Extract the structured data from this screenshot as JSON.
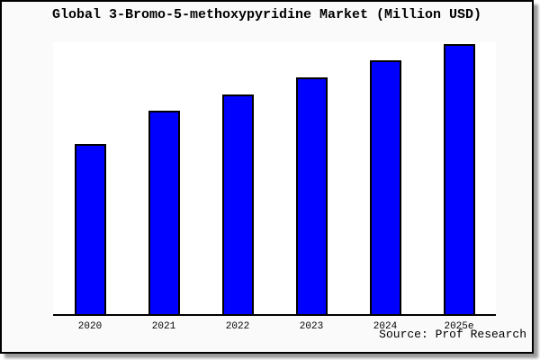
{
  "chart_data": {
    "type": "bar",
    "title": "Global 3-Bromo-5-methoxypyridine Market (Million USD)",
    "categories": [
      "2020",
      "2021",
      "2022",
      "2023",
      "2024",
      "2025e"
    ],
    "values": [
      63,
      75.3,
      81.3,
      87.7,
      94,
      100
    ],
    "value_units": "relative bar height, % of tallest bar (no numeric y-axis shown in image)",
    "xlabel": "",
    "ylabel": "",
    "grid": false,
    "legend_position": "none",
    "ylim_note": "y-axis unlabeled; bars scale monotonically upward year over year",
    "source": "Source: Prof Research"
  },
  "colors": {
    "bar_fill": "#0000FF",
    "bar_border": "#000000",
    "frame_background": "#FAFAFA",
    "plot_background": "#FFFFFF",
    "frame_border": "#000000",
    "axis_line": "#000000",
    "shadow": "#9A9A9A",
    "text": "#000000"
  }
}
